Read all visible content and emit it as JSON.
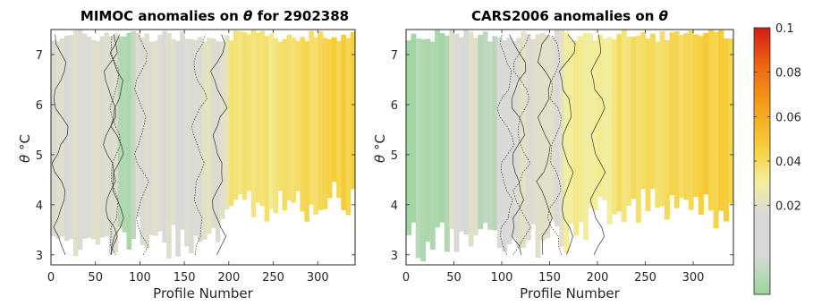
{
  "chart_data": [
    {
      "type": "heatmap",
      "title_prefix": "MIMOC anomalies on",
      "title_symbol": "θ",
      "title_suffix": "for 2902388",
      "xlabel": "Profile Number",
      "ylabel_symbol": "θ",
      "ylabel_unit": "°C",
      "xlim": [
        0,
        342
      ],
      "ylim": [
        2.8,
        7.5
      ],
      "xticks": [
        "0",
        "50",
        "100",
        "150",
        "200",
        "250",
        "300"
      ],
      "yticks": [
        "3",
        "4",
        "5",
        "6",
        "7"
      ],
      "bands": [
        {
          "x0": 0,
          "x1": 30,
          "value": 0.002
        },
        {
          "x0": 30,
          "x1": 60,
          "value": 0.003
        },
        {
          "x0": 60,
          "x1": 75,
          "value": 0.004
        },
        {
          "x0": 75,
          "x1": 95,
          "value": -0.012
        },
        {
          "x0": 95,
          "x1": 130,
          "value": 0.002
        },
        {
          "x0": 130,
          "x1": 160,
          "value": 0.003
        },
        {
          "x0": 160,
          "x1": 200,
          "value": 0.005
        },
        {
          "x0": 200,
          "x1": 250,
          "value": 0.026
        },
        {
          "x0": 250,
          "x1": 275,
          "value": 0.03
        },
        {
          "x0": 275,
          "x1": 300,
          "value": 0.034
        },
        {
          "x0": 300,
          "x1": 342,
          "value": 0.038
        }
      ]
    },
    {
      "type": "heatmap",
      "title_prefix": "CARS2006 anomalies on",
      "title_symbol": "θ",
      "title_suffix": "",
      "xlabel": "Profile Number",
      "ylabel_symbol": "θ",
      "ylabel_unit": "°C",
      "xlim": [
        0,
        342
      ],
      "ylim": [
        2.8,
        7.5
      ],
      "xticks": [
        "0",
        "50",
        "100",
        "150",
        "200",
        "250",
        "300"
      ],
      "yticks": [
        "3",
        "4",
        "5",
        "6",
        "7"
      ],
      "bands": [
        {
          "x0": 0,
          "x1": 45,
          "value": -0.014
        },
        {
          "x0": 45,
          "x1": 75,
          "value": 0.002
        },
        {
          "x0": 75,
          "x1": 95,
          "value": -0.01
        },
        {
          "x0": 95,
          "x1": 120,
          "value": 0.003
        },
        {
          "x0": 120,
          "x1": 165,
          "value": 0.004
        },
        {
          "x0": 165,
          "x1": 220,
          "value": 0.022
        },
        {
          "x0": 220,
          "x1": 270,
          "value": 0.03
        },
        {
          "x0": 270,
          "x1": 300,
          "value": 0.035
        },
        {
          "x0": 300,
          "x1": 342,
          "value": 0.04
        }
      ]
    }
  ],
  "colorbar": {
    "ticks": [
      "0.1",
      "0.08",
      "0.06",
      "0.04",
      "0.02"
    ],
    "tick_values": [
      0.1,
      0.08,
      0.06,
      0.04,
      0.02
    ],
    "range": [
      -0.02,
      0.1
    ],
    "colors": [
      "#9ad69a",
      "#d9d9d9",
      "#f3ee9c",
      "#f6cf3c",
      "#f4a21a",
      "#ee6a12",
      "#d41b12"
    ]
  }
}
